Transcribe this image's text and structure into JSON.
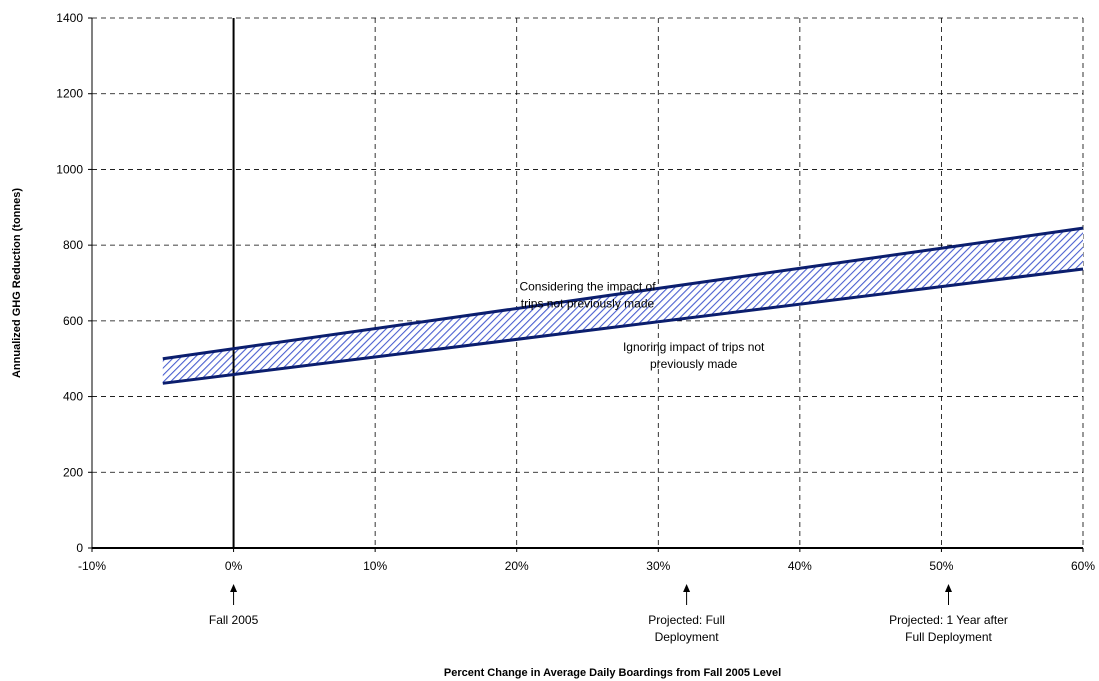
{
  "chart_data": {
    "type": "area",
    "title": "",
    "xlabel": "Percent Change in Average Daily Boardings from Fall 2005 Level",
    "ylabel": "Annualized GHG Reduction (tonnes)",
    "xlim": [
      -10,
      60
    ],
    "ylim": [
      0,
      1400
    ],
    "x_ticks": [
      -10,
      0,
      10,
      20,
      30,
      40,
      50,
      60
    ],
    "x_tick_labels": [
      "-10%",
      "0%",
      "10%",
      "20%",
      "30%",
      "40%",
      "50%",
      "60%"
    ],
    "y_ticks": [
      0,
      200,
      400,
      600,
      800,
      1000,
      1200,
      1400
    ],
    "y_tick_labels": [
      "0",
      "200",
      "400",
      "600",
      "800",
      "1000",
      "1200",
      "1400"
    ],
    "grid": true,
    "band_fill_color": "#4a5fd0",
    "line_color": "#0b1e6e",
    "series": [
      {
        "name": "Considering the impact of trips not previously made",
        "x": [
          -5,
          60
        ],
        "y": [
          500,
          845
        ]
      },
      {
        "name": "Ignoring impact of trips not previously made",
        "x": [
          -5,
          60
        ],
        "y": [
          435,
          737
        ]
      }
    ],
    "series_labels": [
      {
        "lines": [
          "Considering the impact of",
          "trips not previously made"
        ],
        "x": 25,
        "y": 680
      },
      {
        "lines": [
          "Ignoring impact of trips not",
          "previously made"
        ],
        "x": 32.5,
        "y": 520
      }
    ],
    "vertical_marker": {
      "x": 0
    },
    "annotations": [
      {
        "x": 0,
        "lines": [
          "Fall 2005"
        ]
      },
      {
        "x": 32,
        "lines": [
          "Projected:  Full",
          "Deployment"
        ]
      },
      {
        "x": 50.5,
        "lines": [
          "Projected: 1 Year after",
          "Full Deployment"
        ]
      }
    ]
  }
}
